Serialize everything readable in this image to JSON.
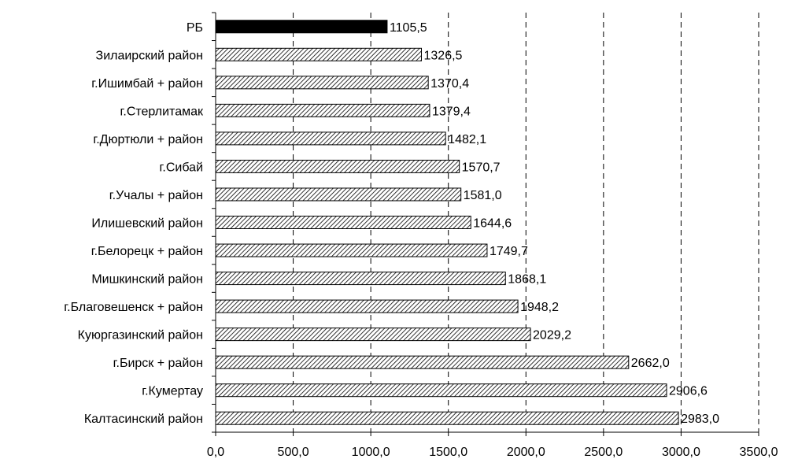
{
  "chart_data": {
    "type": "bar",
    "orientation": "horizontal",
    "title": "",
    "xlabel": "",
    "ylabel": "",
    "categories": [
      "РБ",
      "Зилаирский район",
      "г.Ишимбай + район",
      "г.Стерлитамак",
      "г.Дюртюли + район",
      "г.Сибай",
      "г.Учалы + район",
      "Илишевский район",
      "г.Белорецк + район",
      "Мишкинский район",
      "г.Благовешенск + район",
      "Куюргазинский район",
      "г.Бирск + район",
      "г.Кумертау",
      "Калтасинский район"
    ],
    "values": [
      1105.5,
      1326.5,
      1370.4,
      1379.4,
      1482.1,
      1570.7,
      1581.0,
      1644.6,
      1749.7,
      1868.1,
      1948.2,
      2029.2,
      2662.0,
      2906.6,
      2983.0
    ],
    "value_labels": [
      "1105,5",
      "1326,5",
      "1370,4",
      "1379,4",
      "1482,1",
      "1570,7",
      "1581,0",
      "1644,6",
      "1749,7",
      "1868,1",
      "1948,2",
      "2029,2",
      "2662,0",
      "2906,6",
      "2983,0"
    ],
    "xlim": [
      0,
      3500
    ],
    "x_ticks": [
      0,
      500,
      1000,
      1500,
      2000,
      2500,
      3000,
      3500
    ],
    "x_tick_labels": [
      "0,0",
      "500,0",
      "1000,0",
      "1500,0",
      "2000,0",
      "2500,0",
      "3000,0",
      "3500,0"
    ],
    "grid": "vertical dashed",
    "highlight_index": 0,
    "colors": {
      "highlight_fill": "#000000",
      "bar_fill": "hatched",
      "bar_stroke": "#000000",
      "grid": "#000000"
    }
  }
}
